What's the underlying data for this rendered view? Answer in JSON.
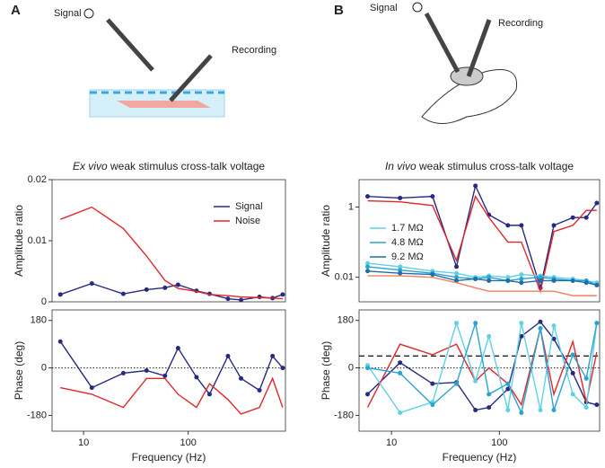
{
  "panels": [
    {
      "label": "A",
      "signal": "Signal",
      "recording": "Recording"
    },
    {
      "label": "B",
      "signal": "Signal",
      "recording": "Recording"
    }
  ],
  "chart_data": [
    {
      "type": "line",
      "title_italic": "Ex vivo",
      "title": "weak stimulus cross-talk voltage",
      "ylabel": "Amplitude ratio",
      "xscale": "log",
      "xlim": [
        5,
        850
      ],
      "ylim": [
        0,
        0.02
      ],
      "yticks": [
        0,
        0.01,
        0.02
      ],
      "legend": "upper right",
      "x": [
        6,
        12,
        24,
        40,
        60,
        80,
        120,
        160,
        240,
        320,
        480,
        640,
        800
      ],
      "series": [
        {
          "name": "Signal",
          "color": "#262a80",
          "markers": true,
          "values": [
            0.0012,
            0.003,
            0.0013,
            0.002,
            0.0023,
            0.0028,
            0.0018,
            0.0013,
            0.0005,
            0.0003,
            0.0008,
            0.0006,
            0.0012
          ]
        },
        {
          "name": "Noise",
          "color": "#e2262b",
          "markers": false,
          "values": [
            0.0135,
            0.0155,
            0.012,
            0.0075,
            0.0035,
            0.0022,
            0.0017,
            0.0012,
            0.001,
            0.0008,
            0.0007,
            0.0006,
            0.0005
          ]
        }
      ]
    },
    {
      "type": "line",
      "ylabel": "Phase (deg)",
      "xlabel": "Frequency (Hz)",
      "xscale": "log",
      "xlim": [
        5,
        850
      ],
      "xticks": [
        10,
        100
      ],
      "ylim": [
        -240,
        220
      ],
      "yticks": [
        -180,
        0,
        180
      ],
      "reference_lines": [
        {
          "value": 0,
          "style": "dotted"
        }
      ],
      "x": [
        6,
        12,
        24,
        40,
        60,
        80,
        120,
        160,
        240,
        320,
        480,
        640,
        800
      ],
      "series": [
        {
          "name": "Signal",
          "color": "#262a80",
          "markers": true,
          "values": [
            100,
            -75,
            -20,
            -10,
            -30,
            75,
            -35,
            -100,
            45,
            -40,
            -85,
            45,
            0
          ]
        },
        {
          "name": "Noise",
          "color": "#e2262b",
          "markers": false,
          "values": [
            -75,
            -100,
            -150,
            -40,
            -40,
            -100,
            -150,
            -60,
            -120,
            -175,
            -150,
            -40,
            -150
          ]
        }
      ]
    },
    {
      "type": "line",
      "title_italic": "In vivo",
      "title": "weak stimulus cross-talk voltage",
      "ylabel": "Amplitude ratio",
      "xscale": "log",
      "yscale": "log",
      "xlim": [
        5,
        850
      ],
      "ylim": [
        0.002,
        6
      ],
      "yticks": [
        0.01,
        1
      ],
      "legend": "center left",
      "x": [
        6,
        12,
        24,
        40,
        60,
        80,
        120,
        160,
        240,
        320,
        480,
        640,
        800
      ],
      "series": [
        {
          "color": "#262a80",
          "markers": true,
          "values": [
            2,
            1.8,
            2,
            0.02,
            4,
            0.6,
            0.3,
            0.3,
            0.005,
            0.3,
            0.5,
            0.5,
            1.3
          ]
        },
        {
          "color": "#e2262b",
          "markers": false,
          "values": [
            1.5,
            1.4,
            1.1,
            0.03,
            2,
            0.5,
            0.1,
            0.1,
            0.004,
            0.2,
            0.3,
            0.8,
            0.8
          ]
        },
        {
          "name": "1.7 MΩ",
          "color": "#5fd0e8",
          "markers": true,
          "values": [
            0.025,
            0.02,
            0.015,
            0.013,
            0.01,
            0.011,
            0.01,
            0.012,
            0.011,
            0.01,
            0.009,
            0.008,
            0.007
          ]
        },
        {
          "name": "4.8 MΩ",
          "color": "#2ba3d0",
          "markers": true,
          "values": [
            0.02,
            0.016,
            0.013,
            0.01,
            0.009,
            0.01,
            0.008,
            0.009,
            0.01,
            0.009,
            0.008,
            0.008,
            0.006
          ]
        },
        {
          "name": "9.2 MΩ",
          "color": "#1f6ea8",
          "markers": true,
          "values": [
            0.015,
            0.013,
            0.012,
            0.008,
            0.009,
            0.008,
            0.008,
            0.007,
            0.008,
            0.008,
            0.008,
            0.007,
            0.006
          ]
        },
        {
          "color": "#f08060",
          "markers": false,
          "values": [
            0.011,
            0.011,
            0.01,
            0.007,
            0.005,
            0.004,
            0.004,
            0.004,
            0.004,
            0.004,
            0.003,
            0.003,
            0.003
          ]
        }
      ]
    },
    {
      "type": "line",
      "ylabel": "Phase (deg)",
      "xlabel": "Frequency (Hz)",
      "xscale": "log",
      "xlim": [
        5,
        850
      ],
      "xticks": [
        10,
        100
      ],
      "ylim": [
        -240,
        220
      ],
      "yticks": [
        -180,
        0,
        180
      ],
      "reference_lines": [
        {
          "value": 0,
          "style": "dotted"
        },
        {
          "value": 45,
          "style": "dashed"
        }
      ],
      "x": [
        6,
        12,
        24,
        40,
        60,
        80,
        120,
        160,
        240,
        320,
        480,
        640,
        800
      ],
      "series": [
        {
          "color": "#262a80",
          "markers": true,
          "values": [
            -100,
            20,
            -60,
            -55,
            -160,
            -150,
            -80,
            120,
            175,
            110,
            -20,
            -130,
            -140
          ]
        },
        {
          "color": "#e2262b",
          "markers": false,
          "values": [
            -150,
            90,
            50,
            90,
            -50,
            0,
            -60,
            -140,
            150,
            -100,
            100,
            -130,
            60
          ]
        },
        {
          "color": "#5fd0e8",
          "markers": true,
          "values": [
            10,
            -170,
            -130,
            170,
            -50,
            120,
            -160,
            170,
            -160,
            160,
            -100,
            -150,
            170
          ]
        },
        {
          "color": "#2ba3d0",
          "markers": true,
          "values": [
            0,
            -20,
            -140,
            -60,
            170,
            -100,
            -60,
            -170,
            150,
            -160,
            50,
            -40,
            170
          ]
        }
      ]
    }
  ]
}
